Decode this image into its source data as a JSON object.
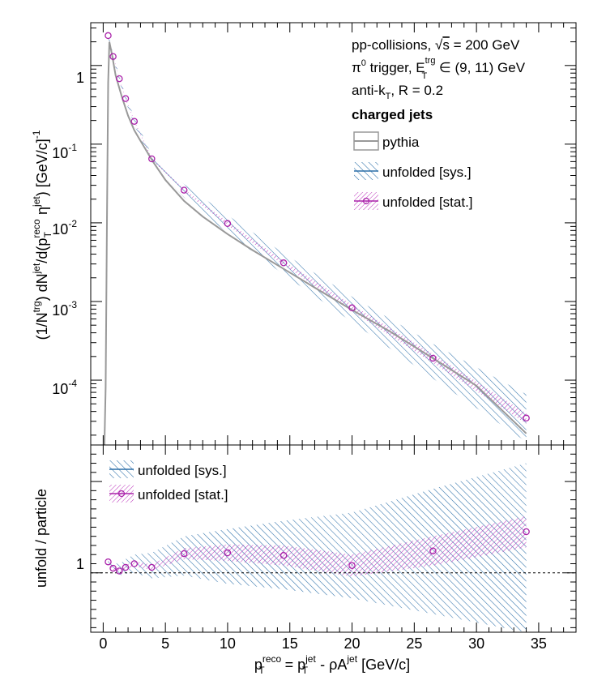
{
  "chart_data": [
    {
      "type": "line",
      "panel": "upper",
      "ylabel": "(1/N^trg) dN^jet/d(p_T^reco η^jet) [GeV/c]^-1",
      "yscale": "log",
      "ylim": [
        1.5e-05,
        3.5
      ],
      "xlim": [
        -1,
        38
      ],
      "yticklabels": [
        "1",
        "10^-1",
        "10^-2",
        "10^-3",
        "10^-4"
      ],
      "annotations": [
        "pp-collisions, √s = 200 GeV",
        "π⁰ trigger, E_T^trg ∈ (9, 11) GeV",
        "anti-k_T, R = 0.2",
        "charged jets"
      ],
      "legend_position": "top-right",
      "series": [
        {
          "name": "pythia",
          "color": "#999999",
          "x": [
            0.1,
            0.2,
            0.3,
            0.4,
            0.5,
            0.7,
            1.0,
            1.5,
            2.0,
            2.5,
            3.0,
            4.0,
            5.0,
            6.5,
            8.0,
            10.0,
            12.0,
            14.5,
            17.0,
            20.0,
            23.0,
            26.5,
            30.0,
            34.0
          ],
          "y": [
            1.5e-05,
            8e-05,
            0.01,
            0.6,
            2.0,
            1.4,
            0.75,
            0.4,
            0.23,
            0.15,
            0.11,
            0.06,
            0.035,
            0.019,
            0.012,
            0.0072,
            0.0045,
            0.0026,
            0.0015,
            0.00078,
            0.00042,
            0.00019,
            8.5e-05,
            2.1e-05
          ]
        },
        {
          "name": "unfolded [sys.]",
          "color": "#2b6fa8",
          "x": [
            0.4,
            0.8,
            1.3,
            1.8,
            2.5,
            3.9,
            6.5,
            10.0,
            14.5,
            20.0,
            26.5,
            34.0
          ],
          "y": [
            2.4,
            1.3,
            0.68,
            0.38,
            0.195,
            0.065,
            0.026,
            0.0098,
            0.0031,
            0.00083,
            0.00019,
            3.3e-05
          ],
          "band_lo": [
            2.2,
            1.2,
            0.62,
            0.35,
            0.175,
            0.057,
            0.021,
            0.0074,
            0.0022,
            0.00055,
            0.000105,
            1.65e-05
          ],
          "band_hi": [
            2.6,
            1.4,
            0.74,
            0.41,
            0.22,
            0.073,
            0.031,
            0.0125,
            0.0041,
            0.00115,
            0.00029,
            6.6e-05
          ]
        },
        {
          "name": "unfolded [stat.]",
          "color": "#aa22aa",
          "x": [
            0.4,
            0.8,
            1.3,
            1.8,
            2.5,
            3.9,
            6.5,
            10.0,
            14.5,
            20.0,
            26.5,
            34.0
          ],
          "y": [
            2.4,
            1.3,
            0.68,
            0.38,
            0.195,
            0.065,
            0.026,
            0.0098,
            0.0031,
            0.00083,
            0.00019,
            3.3e-05
          ],
          "band_lo": [
            2.35,
            1.27,
            0.66,
            0.37,
            0.19,
            0.063,
            0.0252,
            0.0093,
            0.0029,
            0.00075,
            0.000165,
            2.8e-05
          ],
          "band_hi": [
            2.45,
            1.33,
            0.7,
            0.39,
            0.2,
            0.067,
            0.0268,
            0.0103,
            0.0033,
            0.00091,
            0.000215,
            3.8e-05
          ]
        }
      ]
    },
    {
      "type": "line",
      "panel": "lower",
      "ylabel": "unfold / particle",
      "xlabel": "p_T^reco = p_T^jet - ρA^jet [GeV/c]",
      "xlim": [
        -1,
        38
      ],
      "ylim": [
        0.35,
        2.4
      ],
      "xticklabels": [
        "0",
        "5",
        "10",
        "15",
        "20",
        "25",
        "30",
        "35"
      ],
      "yticklabels": [
        "1"
      ],
      "reference_line": 1.0,
      "legend_position": "top-left",
      "series": [
        {
          "name": "unfolded [sys.]",
          "color": "#2b6fa8",
          "x": [
            0.4,
            0.8,
            1.3,
            1.8,
            2.5,
            3.9,
            6.5,
            10.0,
            14.5,
            20.0,
            26.5,
            34.0
          ],
          "y": [
            1.12,
            1.05,
            1.02,
            1.06,
            1.1,
            1.06,
            1.21,
            1.22,
            1.19,
            1.08,
            1.24,
            1.45
          ],
          "band_lo": [
            1.07,
            1.0,
            0.97,
            0.99,
            1.0,
            0.94,
            0.97,
            0.88,
            0.82,
            0.72,
            0.55,
            0.35
          ],
          "band_hi": [
            1.17,
            1.12,
            1.09,
            1.15,
            1.2,
            1.22,
            1.4,
            1.48,
            1.57,
            1.66,
            1.92,
            2.2
          ]
        },
        {
          "name": "unfolded [stat.]",
          "color": "#aa22aa",
          "x": [
            0.4,
            0.8,
            1.3,
            1.8,
            2.5,
            3.9,
            6.5,
            10.0,
            14.5,
            20.0,
            26.5,
            34.0
          ],
          "y": [
            1.12,
            1.05,
            1.02,
            1.06,
            1.1,
            1.06,
            1.21,
            1.22,
            1.19,
            1.08,
            1.24,
            1.45
          ],
          "band_lo": [
            1.1,
            1.03,
            1.0,
            1.04,
            1.07,
            1.03,
            1.15,
            1.13,
            1.08,
            0.96,
            1.08,
            1.28
          ],
          "band_hi": [
            1.14,
            1.07,
            1.04,
            1.08,
            1.13,
            1.09,
            1.27,
            1.31,
            1.3,
            1.2,
            1.4,
            1.62
          ]
        }
      ]
    }
  ],
  "text": {
    "ann1_pre": "pp-collisions, ",
    "ann1_sqrt": "√",
    "ann1_s": "s",
    "ann1_post": " = 200 GeV",
    "ann2_pi": "π",
    "ann2_zero": "0",
    "ann2_mid": " trigger, E",
    "ann2_sup": "trg",
    "ann2_sub": "T",
    "ann2_post": " ∈ (9, 11) GeV",
    "ann3_pre": "anti-k",
    "ann3_sub": "T",
    "ann3_post": ", R = 0.2",
    "ann4": "charged jets",
    "ylabel_upper": {
      "p1": "(1/N",
      "s1": "trg",
      "p2": ") dN",
      "s2": "jet",
      "p3": "/d(p",
      "s3": "reco",
      "b3": "T",
      "p4": " η",
      "s4": "jet",
      "p5": ") [GeV/c]",
      "s5": "-1"
    },
    "ylabel_lower": "unfold / particle",
    "xlabel": {
      "p1": "p",
      "s1": "reco",
      "b1": "T",
      "p2": " = p",
      "s2": "jet",
      "b2": "T",
      "p3": " - ρA",
      "s3": "jet",
      "p4": " [GeV/c]"
    },
    "ytick_upper": {
      "one": "1",
      "ten": "10",
      "e1": "-1",
      "e2": "-2",
      "e3": "-3",
      "e4": "-4"
    },
    "ytick_lower_one": "1"
  }
}
